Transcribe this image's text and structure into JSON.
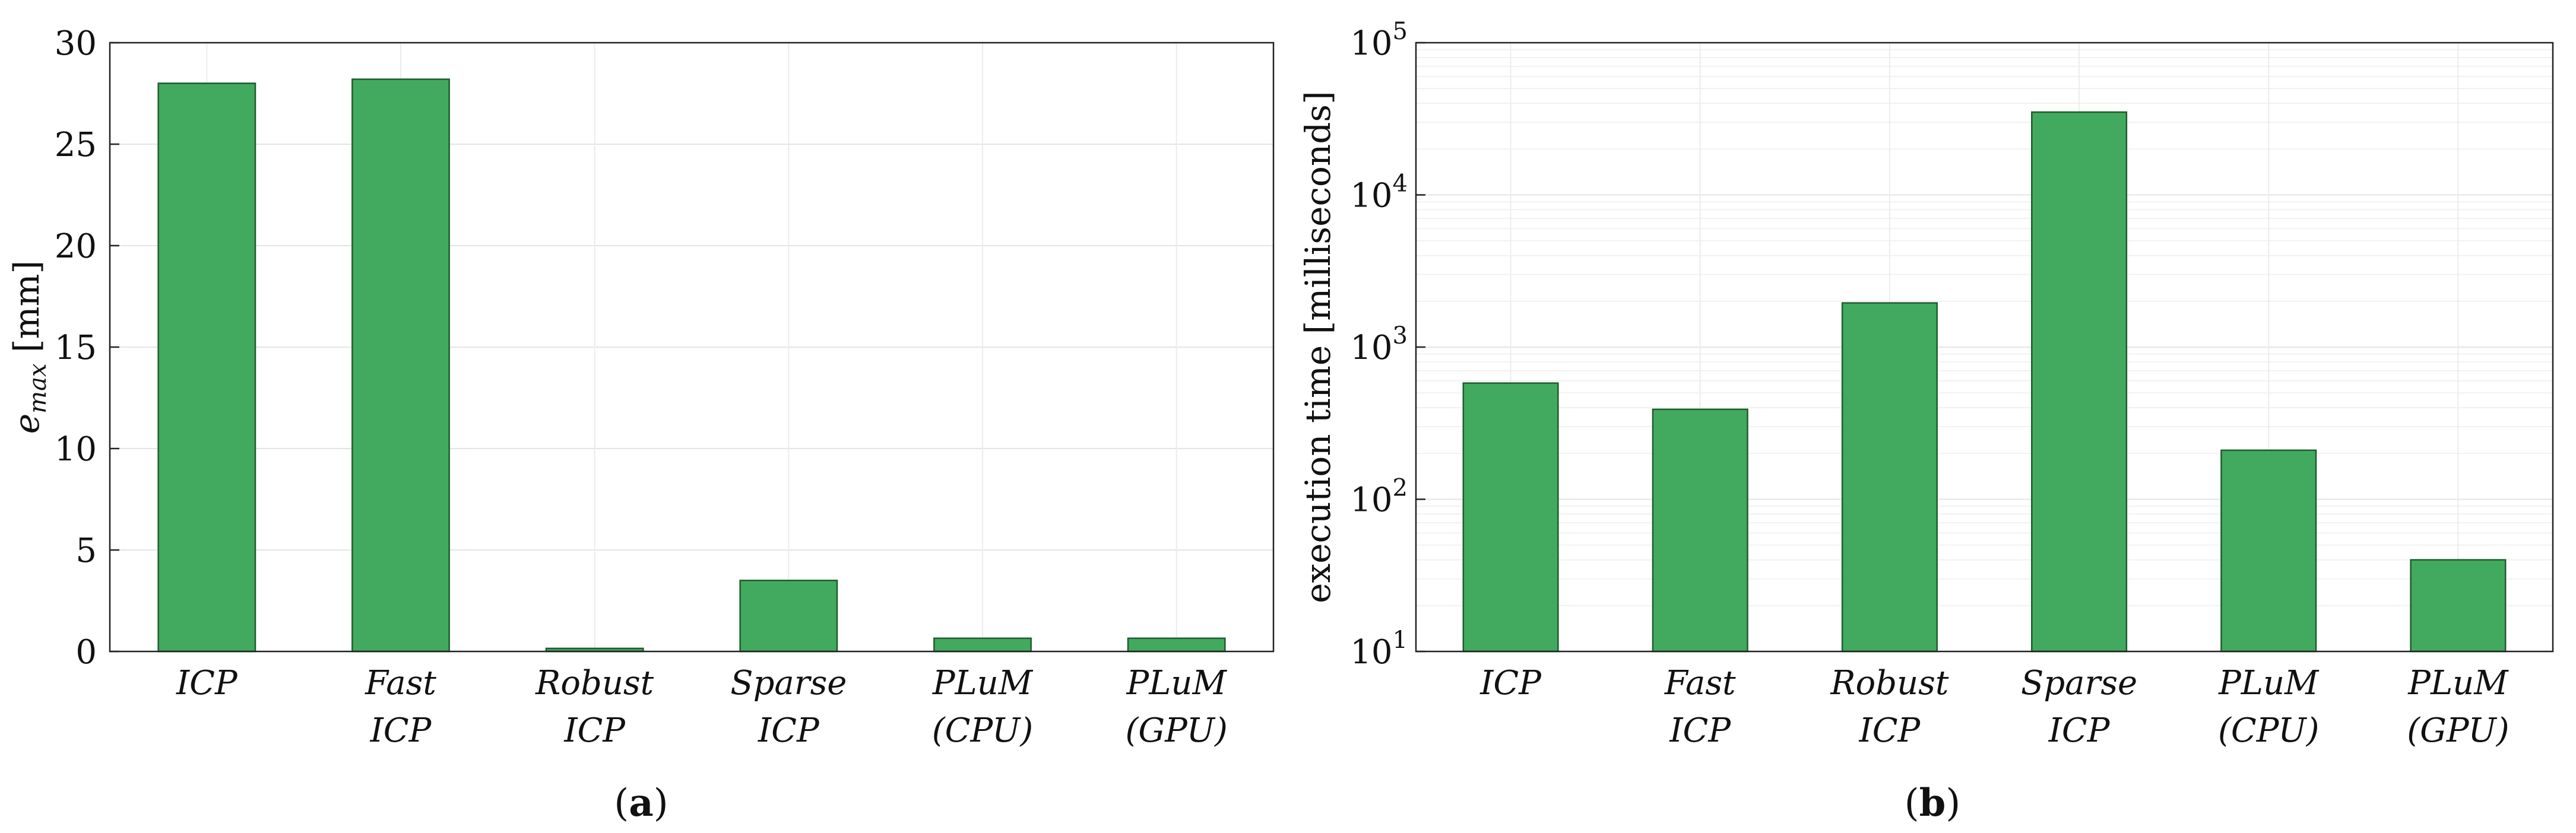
{
  "chart_data": [
    {
      "type": "bar",
      "panel_label": "a",
      "ylabel_main": "e",
      "ylabel_sub": "max",
      "ylabel_unit": "[mm]",
      "categories": [
        [
          "ICP"
        ],
        [
          "Fast",
          "ICP"
        ],
        [
          "Robust",
          "ICP"
        ],
        [
          "Sparse",
          "ICP"
        ],
        [
          "PLuM",
          "(CPU)"
        ],
        [
          "PLuM",
          "(GPU)"
        ]
      ],
      "values": [
        28.0,
        28.2,
        0.15,
        3.5,
        0.65,
        0.65
      ],
      "ylim": [
        0,
        30
      ],
      "yscale": "linear",
      "yticks": [
        0,
        5,
        10,
        15,
        20,
        25,
        30
      ],
      "grid": true,
      "bar_color": "#41aa5e",
      "bar_edge_color": "#1f5c2f"
    },
    {
      "type": "bar",
      "panel_label": "b",
      "ylabel": "execution time [milliseconds]",
      "categories": [
        [
          "ICP"
        ],
        [
          "Fast",
          "ICP"
        ],
        [
          "Robust",
          "ICP"
        ],
        [
          "Sparse",
          "ICP"
        ],
        [
          "PLuM",
          "(CPU)"
        ],
        [
          "PLuM",
          "(GPU)"
        ]
      ],
      "values": [
        580,
        390,
        1950,
        35000,
        210,
        40
      ],
      "ylim": [
        10,
        100000
      ],
      "yscale": "log",
      "yticks": [
        10,
        100,
        1000,
        10000,
        100000
      ],
      "ytick_exponents": [
        "1",
        "2",
        "3",
        "4",
        "5"
      ],
      "ytick_base": "10",
      "grid": true,
      "bar_color": "#41aa5e",
      "bar_edge_color": "#1f5c2f"
    }
  ]
}
